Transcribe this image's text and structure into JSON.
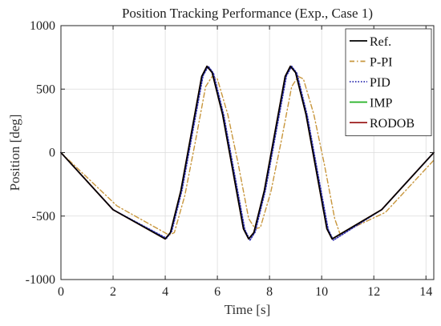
{
  "chart_data": {
    "type": "line",
    "title": "Position Tracking Performance (Exp., Case 1)",
    "xlabel": "Time [s]",
    "ylabel": "Position [deg]",
    "xlim": [
      0,
      14.3
    ],
    "ylim": [
      -1000,
      1000
    ],
    "xticks": [
      0,
      2,
      4,
      6,
      8,
      10,
      12,
      14
    ],
    "yticks": [
      -1000,
      -500,
      0,
      500,
      1000
    ],
    "xtick_labels": [
      "0",
      "2",
      "4",
      "6",
      "8",
      "10",
      "12",
      "14"
    ],
    "ytick_labels": [
      "-1000",
      "-500",
      "0",
      "500",
      "1000"
    ],
    "grid": true,
    "legend_position": "top-right",
    "series": [
      {
        "name": "Ref.",
        "color": "#000000",
        "style": "solid",
        "x": [
          0,
          2.0,
          4.0,
          4.2,
          4.6,
          5.0,
          5.4,
          5.6,
          5.8,
          6.2,
          6.6,
          7.0,
          7.2,
          7.4,
          7.8,
          8.2,
          8.6,
          8.8,
          9.0,
          9.4,
          9.8,
          10.2,
          10.4,
          12.3,
          14.3
        ],
        "y": [
          0,
          -450,
          -680,
          -630,
          -300,
          150,
          600,
          680,
          630,
          300,
          -150,
          -600,
          -680,
          -630,
          -300,
          150,
          600,
          680,
          630,
          300,
          -150,
          -600,
          -680,
          -450,
          0
        ]
      },
      {
        "name": "P-PI",
        "color": "#c8963c",
        "style": "dashdot",
        "x": [
          0,
          2.15,
          4.15,
          4.35,
          4.75,
          5.15,
          5.55,
          5.8,
          6.0,
          6.4,
          6.8,
          7.2,
          7.45,
          7.65,
          8.05,
          8.45,
          8.85,
          9.1,
          9.3,
          9.7,
          10.1,
          10.5,
          10.7,
          12.45,
          14.3
        ],
        "y": [
          0,
          -420,
          -650,
          -630,
          -340,
          80,
          520,
          600,
          580,
          300,
          -90,
          -520,
          -600,
          -590,
          -310,
          90,
          520,
          600,
          580,
          300,
          -90,
          -520,
          -640,
          -470,
          -60
        ]
      },
      {
        "name": "PID",
        "color": "#2b2bb0",
        "style": "dotted",
        "x": [
          0,
          2.0,
          4.05,
          4.25,
          4.65,
          5.05,
          5.45,
          5.65,
          5.85,
          6.25,
          6.65,
          7.05,
          7.25,
          7.45,
          7.85,
          8.25,
          8.65,
          8.85,
          9.05,
          9.45,
          9.85,
          10.25,
          10.45,
          12.3,
          14.3
        ],
        "y": [
          0,
          -450,
          -675,
          -620,
          -290,
          160,
          605,
          680,
          625,
          290,
          -160,
          -605,
          -690,
          -625,
          -290,
          160,
          605,
          680,
          625,
          290,
          -160,
          -605,
          -690,
          -450,
          0
        ]
      },
      {
        "name": "IMP",
        "color": "#22b022",
        "style": "solid",
        "x": [
          0,
          2.0,
          4.0,
          4.2,
          4.6,
          5.0,
          5.4,
          5.6,
          5.8,
          6.2,
          6.6,
          7.0,
          7.2,
          7.4,
          7.8,
          8.2,
          8.6,
          8.8,
          9.0,
          9.4,
          9.8,
          10.2,
          10.4,
          12.3,
          14.3
        ],
        "y": [
          0,
          -450,
          -680,
          -630,
          -300,
          150,
          600,
          680,
          630,
          300,
          -150,
          -600,
          -680,
          -630,
          -300,
          150,
          600,
          680,
          630,
          300,
          -150,
          -600,
          -680,
          -450,
          0
        ]
      },
      {
        "name": "RODOB",
        "color": "#9b1b1b",
        "style": "solid",
        "x": [
          0,
          2.0,
          4.0,
          4.2,
          4.6,
          5.0,
          5.4,
          5.6,
          5.8,
          6.2,
          6.6,
          7.0,
          7.2,
          7.4,
          7.8,
          8.2,
          8.6,
          8.8,
          9.0,
          9.4,
          9.8,
          10.2,
          10.4,
          12.3,
          14.3
        ],
        "y": [
          0,
          -450,
          -680,
          -630,
          -300,
          150,
          600,
          680,
          630,
          300,
          -150,
          -600,
          -680,
          -630,
          -300,
          150,
          600,
          680,
          630,
          300,
          -150,
          -600,
          -680,
          -450,
          0
        ]
      }
    ]
  }
}
